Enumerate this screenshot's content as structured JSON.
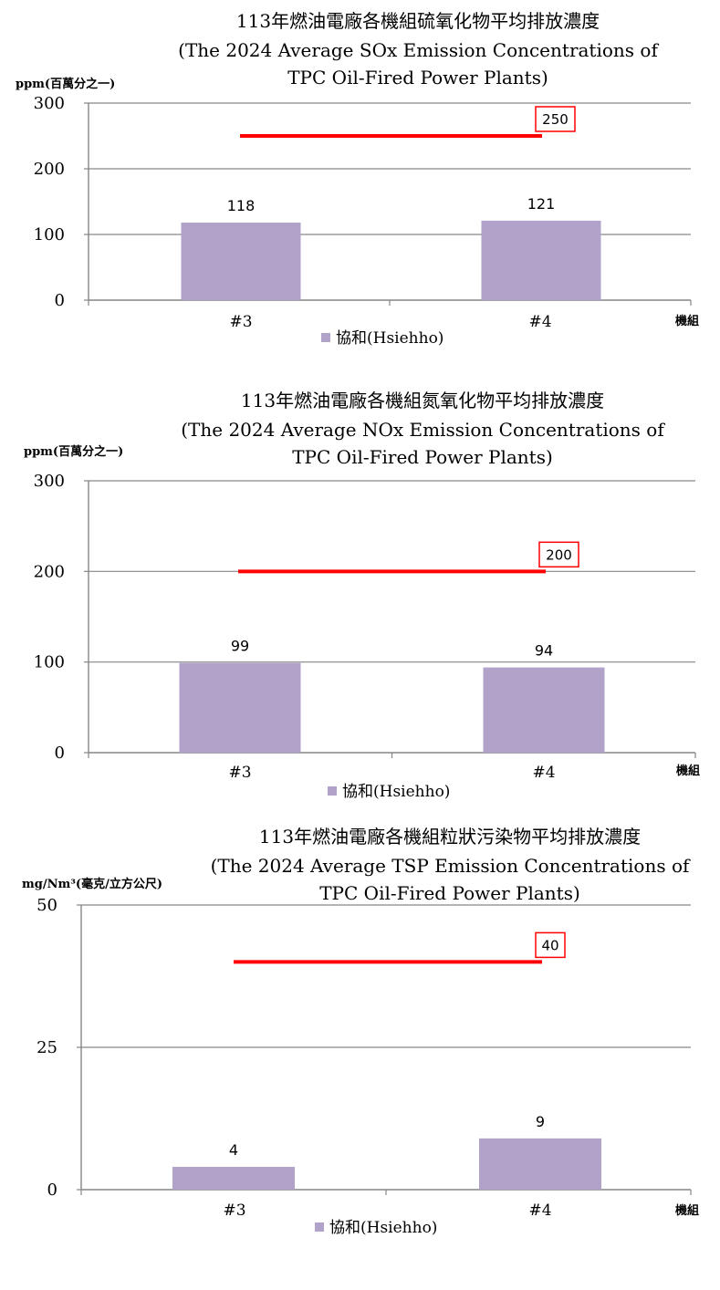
{
  "chart_data": [
    {
      "type": "bar",
      "title": "113年燃油電廠各機組硫氧化物平均排放濃度",
      "subtitle_lines": [
        "(The 2024 Average SOx Emission Concentrations of",
        "TPC Oil-Fired Power Plants)"
      ],
      "ylabel": "ppm(百萬分之一)",
      "xlabel": "機組",
      "categories": [
        "#3",
        "#4"
      ],
      "series": [
        {
          "name": "協和(Hsiehho)",
          "values": [
            118,
            121
          ],
          "color": "#b1a2c9"
        }
      ],
      "ylim": [
        0,
        300
      ],
      "yticks": [
        "0",
        "100",
        "200",
        "300"
      ],
      "limit": {
        "value": 250,
        "label": "250",
        "color": "#ff0000"
      },
      "grid": true,
      "legend": "bottom"
    },
    {
      "type": "bar",
      "title": "113年燃油電廠各機組氮氧化物平均排放濃度",
      "subtitle_lines": [
        "(The 2024 Average NOx Emission Concentrations of",
        "TPC Oil-Fired Power Plants)"
      ],
      "ylabel": "ppm(百萬分之一)",
      "xlabel": "機組",
      "categories": [
        "#3",
        "#4"
      ],
      "series": [
        {
          "name": "協和(Hsiehho)",
          "values": [
            99,
            94
          ],
          "color": "#b1a2c9"
        }
      ],
      "ylim": [
        0,
        300
      ],
      "yticks": [
        "0",
        "100",
        "200",
        "300"
      ],
      "limit": {
        "value": 200,
        "label": "200",
        "color": "#ff0000"
      },
      "grid": true,
      "legend": "bottom"
    },
    {
      "type": "bar",
      "title": "113年燃油電廠各機組粒狀污染物平均排放濃度",
      "subtitle_lines": [
        "(The 2024 Average TSP Emission Concentrations of",
        "TPC Oil-Fired Power Plants)"
      ],
      "ylabel": "mg/Nm³(毫克/立方公尺)",
      "xlabel": "機組",
      "categories": [
        "#3",
        "#4"
      ],
      "series": [
        {
          "name": "協和(Hsiehho)",
          "values": [
            4,
            9
          ],
          "color": "#b1a2c9"
        }
      ],
      "ylim": [
        0,
        50
      ],
      "yticks": [
        "0",
        "25",
        "50"
      ],
      "limit": {
        "value": 40,
        "label": "40",
        "color": "#ff0000"
      },
      "grid": true,
      "legend": "bottom"
    }
  ]
}
